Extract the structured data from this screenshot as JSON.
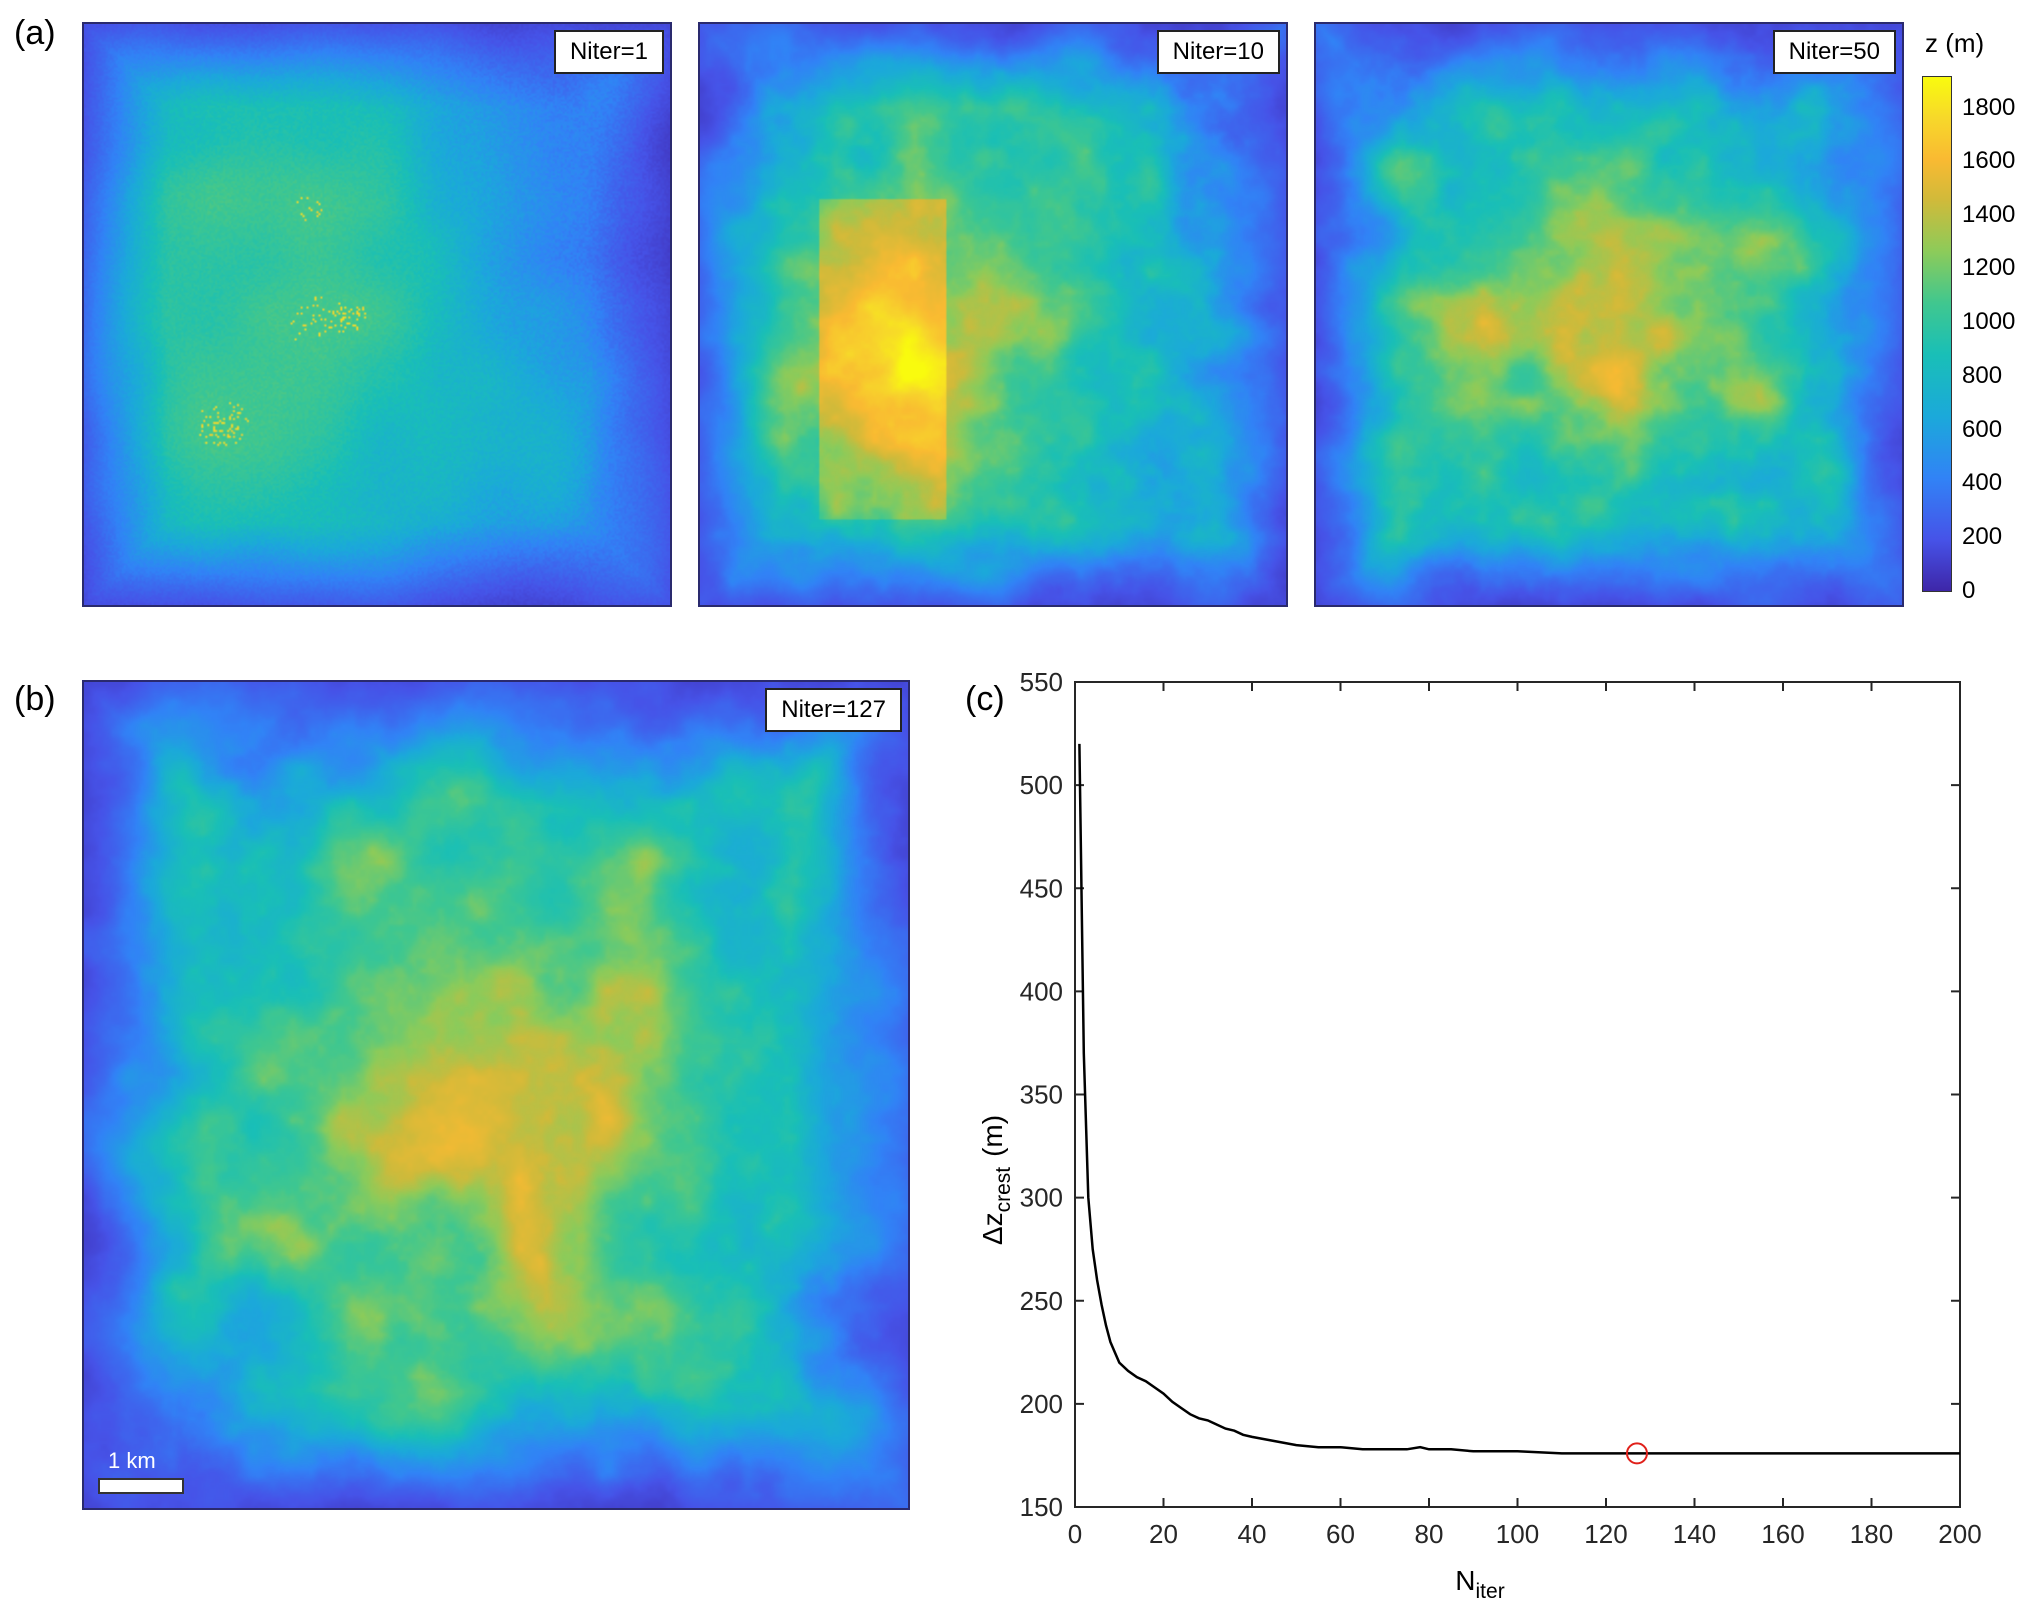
{
  "panels": {
    "a": {
      "letter": "(a)",
      "maps": [
        {
          "label": "Niter=1"
        },
        {
          "label": "Niter=10"
        },
        {
          "label": "Niter=50"
        }
      ]
    },
    "b": {
      "letter": "(b)",
      "label": "Niter=127",
      "scalebar": "1 km"
    },
    "c": {
      "letter": "(c)"
    }
  },
  "colorbar": {
    "title": "z (m)",
    "ticks": [
      "0",
      "200",
      "400",
      "600",
      "800",
      "1000",
      "1200",
      "1400",
      "1600",
      "1800"
    ],
    "colors": [
      "#3e26a8",
      "#4653e8",
      "#3183f6",
      "#1ba9da",
      "#19bfb7",
      "#40c78f",
      "#8ccb5a",
      "#d0ba3a",
      "#f9ba32",
      "#f7d82a",
      "#f9fb0e"
    ]
  },
  "chart_data": {
    "type": "line",
    "xlabel": "N",
    "xlabel_sub": "iter",
    "ylabel": "Δz",
    "ylabel_sub": "crest",
    "ylabel_unit": "(m)",
    "xlim": [
      0,
      200
    ],
    "ylim": [
      150,
      550
    ],
    "xticks": [
      0,
      20,
      40,
      60,
      80,
      100,
      120,
      140,
      160,
      180,
      200
    ],
    "yticks": [
      150,
      200,
      250,
      300,
      350,
      400,
      450,
      500,
      550
    ],
    "grid": false,
    "line_color": "#000000",
    "series": [
      {
        "x": [
          1,
          2,
          3,
          4,
          5,
          6,
          7,
          8,
          9,
          10,
          12,
          14,
          16,
          18,
          20,
          22,
          24,
          26,
          28,
          30,
          32,
          34,
          36,
          38,
          40,
          45,
          50,
          55,
          60,
          65,
          70,
          75,
          78,
          80,
          85,
          90,
          95,
          100,
          110,
          120,
          127,
          140,
          160,
          180,
          200
        ],
        "y": [
          520,
          370,
          300,
          275,
          260,
          248,
          238,
          230,
          225,
          220,
          216,
          213,
          211,
          208,
          205,
          201,
          198,
          195,
          193,
          192,
          190,
          188,
          187,
          185,
          184,
          182,
          180,
          179,
          179,
          178,
          178,
          178,
          179,
          178,
          178,
          177,
          177,
          177,
          176,
          176,
          176,
          176,
          176,
          176,
          176
        ]
      }
    ],
    "marker": {
      "x": 127,
      "y": 176,
      "color": "#e0201a",
      "shape": "circle"
    }
  }
}
